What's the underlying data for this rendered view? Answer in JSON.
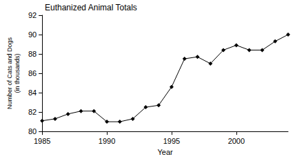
{
  "chart_data": {
    "type": "line",
    "title": "Euthanized Animal Totals",
    "x_label": "Year",
    "y_label": "Number of Cats and Dogs\n(in thousands)",
    "x": [
      1985,
      1986,
      1987,
      1988,
      1989,
      1990,
      1991,
      1992,
      1993,
      1994,
      1995,
      1996,
      1997,
      1998,
      1999,
      2000,
      2001,
      2002,
      2003,
      2004
    ],
    "values": [
      81.1,
      81.3,
      81.8,
      82.1,
      82.1,
      81.0,
      81.0,
      81.3,
      82.5,
      82.7,
      84.6,
      87.5,
      87.7,
      87.0,
      88.4,
      88.9,
      88.4,
      88.4,
      89.3,
      90.0
    ],
    "color": "#000000",
    "marker": "diamond",
    "line_style": "solid",
    "xlim": [
      1985,
      2004
    ],
    "xticks": [
      1985,
      1990,
      1995,
      2000
    ],
    "ylim": [
      80,
      92
    ],
    "yticks": [
      80,
      82,
      84,
      86,
      88,
      90,
      92
    ],
    "grid": false
  }
}
